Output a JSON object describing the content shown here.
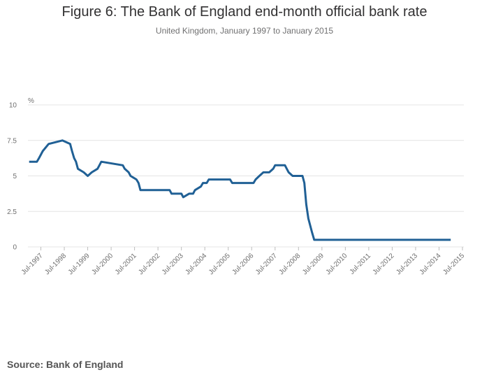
{
  "chart_data": {
    "type": "line",
    "title": "Figure 6: The Bank of England end-month official bank rate",
    "subtitle": "United Kingdom, January 1997 to January 2015",
    "ylabel": "%",
    "xlabel": "",
    "ylim": [
      0,
      10
    ],
    "yticks": [
      {
        "value": 0,
        "label": "0"
      },
      {
        "value": 2.5,
        "label": "2.5"
      },
      {
        "value": 5,
        "label": "5"
      },
      {
        "value": 7.5,
        "label": "7.5"
      },
      {
        "value": 10,
        "label": "10"
      }
    ],
    "xrange": [
      1997.0,
      2015.0
    ],
    "xticks": [
      {
        "value": 1997.5,
        "label": "Jul-1997"
      },
      {
        "value": 1998.5,
        "label": "Jul-1998"
      },
      {
        "value": 1999.5,
        "label": "Jul-1999"
      },
      {
        "value": 2000.5,
        "label": "Jul-2000"
      },
      {
        "value": 2001.5,
        "label": "Jul-2001"
      },
      {
        "value": 2002.5,
        "label": "Jul-2002"
      },
      {
        "value": 2003.5,
        "label": "Jul-2003"
      },
      {
        "value": 2004.5,
        "label": "Jul-2004"
      },
      {
        "value": 2005.5,
        "label": "Jul-2005"
      },
      {
        "value": 2006.5,
        "label": "Jul-2006"
      },
      {
        "value": 2007.5,
        "label": "Jul-2007"
      },
      {
        "value": 2008.5,
        "label": "Jul-2008"
      },
      {
        "value": 2009.5,
        "label": "Jul-2009"
      },
      {
        "value": 2010.5,
        "label": "Jul-2010"
      },
      {
        "value": 2011.5,
        "label": "Jul-2011"
      },
      {
        "value": 2012.5,
        "label": "Jul-2012"
      },
      {
        "value": 2013.5,
        "label": "Jul-2013"
      },
      {
        "value": 2014.5,
        "label": "Jul-2014"
      },
      {
        "value": 2015.5,
        "label": "Jul-2015"
      }
    ],
    "series": [
      {
        "name": "Bank rate",
        "color": "#206095",
        "x": [
          1997.0,
          1997.33,
          1997.42,
          1997.5,
          1997.58,
          1997.83,
          1998.42,
          1998.75,
          1998.83,
          1998.92,
          1999.0,
          1999.08,
          1999.33,
          1999.5,
          1999.67,
          1999.92,
          2000.0,
          2000.08,
          2001.0,
          2001.08,
          2001.25,
          2001.33,
          2001.58,
          2001.67,
          2001.75,
          2001.83,
          2002.0,
          2003.0,
          2003.08,
          2003.5,
          2003.58,
          2003.83,
          2004.0,
          2004.08,
          2004.33,
          2004.42,
          2004.58,
          2004.67,
          2005.58,
          2005.67,
          2006.58,
          2006.67,
          2006.83,
          2007.0,
          2007.25,
          2007.42,
          2007.5,
          2007.92,
          2008.0,
          2008.08,
          2008.25,
          2008.67,
          2008.75,
          2008.83,
          2008.92,
          2009.08,
          2009.17,
          2015.0
        ],
        "values": [
          6.0,
          6.0,
          6.25,
          6.5,
          6.75,
          7.25,
          7.5,
          7.25,
          6.75,
          6.25,
          6.0,
          5.5,
          5.25,
          5.0,
          5.25,
          5.5,
          5.75,
          6.0,
          5.75,
          5.5,
          5.25,
          5.0,
          4.75,
          4.5,
          4.0,
          4.0,
          4.0,
          4.0,
          3.75,
          3.75,
          3.5,
          3.75,
          3.75,
          4.0,
          4.25,
          4.5,
          4.5,
          4.75,
          4.75,
          4.5,
          4.5,
          4.75,
          5.0,
          5.25,
          5.25,
          5.5,
          5.75,
          5.75,
          5.5,
          5.25,
          5.0,
          5.0,
          4.5,
          3.0,
          2.0,
          1.0,
          0.5,
          0.5
        ]
      }
    ]
  },
  "footer": {
    "source": "Source: Bank of England"
  }
}
